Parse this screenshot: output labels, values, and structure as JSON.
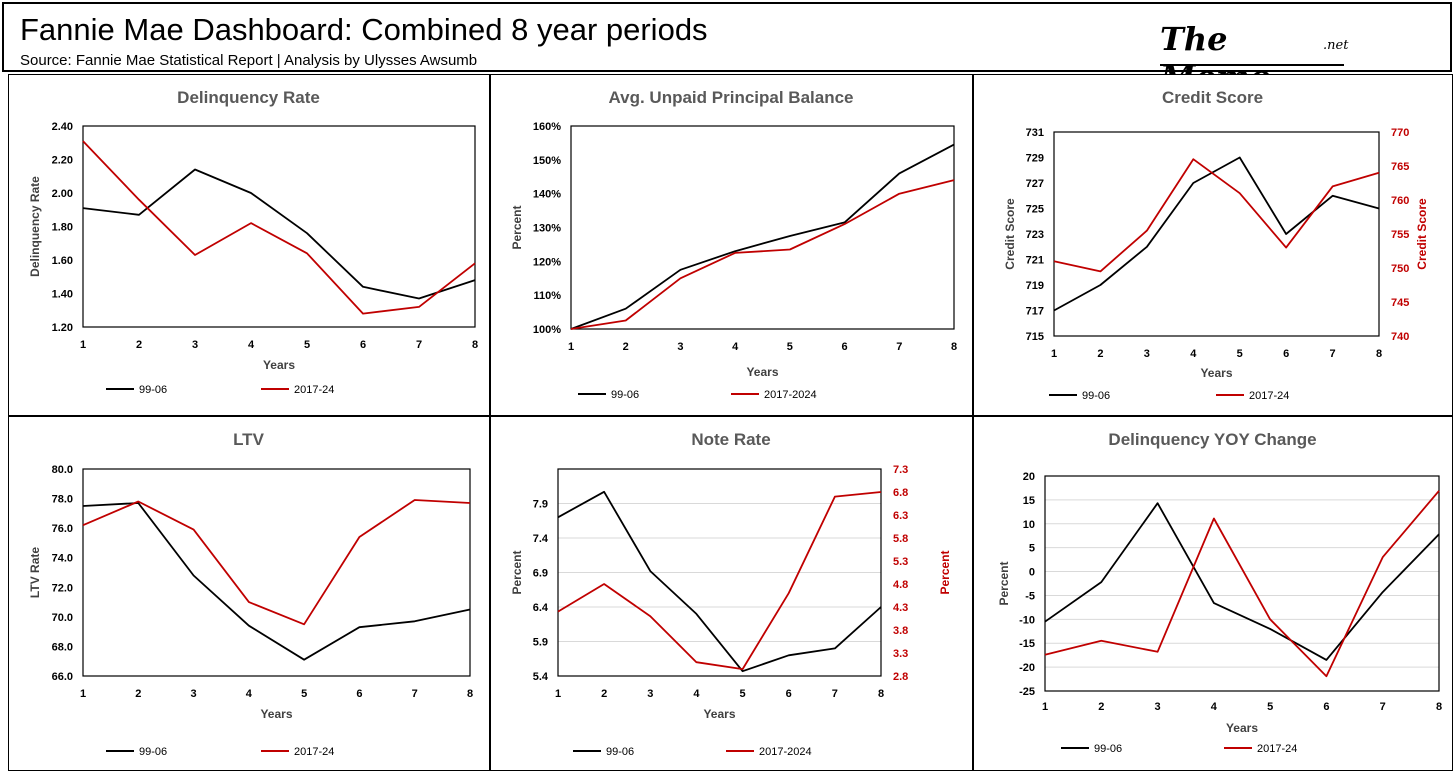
{
  "header": {
    "title": "Fannie Mae Dashboard: Combined 8 year periods",
    "subtitle": "Source: Fannie Mae Statistical Report | Analysis by Ulysses Awsumb",
    "logo_main": "The Memo",
    "logo_tld": ".net"
  },
  "colors": {
    "series1": "#000000",
    "series2": "#c00000",
    "grid": "#d9d9d9"
  },
  "chart_data": [
    {
      "id": "delinquency",
      "type": "line",
      "title": "Delinquency Rate",
      "xlabel": "Years",
      "ylabel": "Delinquency Rate",
      "categories": [
        "1",
        "2",
        "3",
        "4",
        "5",
        "6",
        "7",
        "8"
      ],
      "ylim": [
        1.2,
        2.4
      ],
      "yticks": [
        "1.20",
        "1.40",
        "1.60",
        "1.80",
        "2.00",
        "2.20",
        "2.40"
      ],
      "grid": false,
      "legend": "bottom",
      "series": [
        {
          "name": "99-06",
          "axis": "left",
          "values": [
            1.91,
            1.87,
            2.14,
            2.0,
            1.76,
            1.44,
            1.37,
            1.48
          ]
        },
        {
          "name": "2017-24",
          "axis": "left",
          "values": [
            2.31,
            1.96,
            1.63,
            1.82,
            1.64,
            1.28,
            1.32,
            1.58
          ]
        }
      ]
    },
    {
      "id": "upb",
      "type": "line",
      "title": "Avg. Unpaid Principal Balance",
      "xlabel": "Years",
      "ylabel": "Percent",
      "categories": [
        "1",
        "2",
        "3",
        "4",
        "5",
        "6",
        "7",
        "8"
      ],
      "ylim": [
        100,
        160
      ],
      "yticks": [
        "100%",
        "110%",
        "120%",
        "130%",
        "140%",
        "150%",
        "160%"
      ],
      "grid": false,
      "legend": "bottom",
      "series": [
        {
          "name": "99-06",
          "axis": "left",
          "values": [
            100,
            106,
            117.5,
            123,
            127.5,
            131.5,
            146,
            154.5
          ]
        },
        {
          "name": "2017-2024",
          "axis": "left",
          "values": [
            100,
            102.5,
            115,
            122.5,
            123.5,
            131,
            140,
            144
          ]
        }
      ]
    },
    {
      "id": "credit",
      "type": "line",
      "title": "Credit Score",
      "xlabel": "Years",
      "ylabel": "Credit Score",
      "y2label": "Credit Score",
      "categories": [
        "1",
        "2",
        "3",
        "4",
        "5",
        "6",
        "7",
        "8"
      ],
      "ylim": [
        715,
        731
      ],
      "yticks": [
        "715",
        "717",
        "719",
        "721",
        "723",
        "725",
        "727",
        "729",
        "731"
      ],
      "y2lim": [
        740,
        770
      ],
      "y2ticks": [
        "740",
        "745",
        "750",
        "755",
        "760",
        "765",
        "770"
      ],
      "grid": false,
      "legend": "bottom",
      "series": [
        {
          "name": "99-06",
          "axis": "left",
          "values": [
            717,
            719,
            722,
            727,
            729,
            723,
            726,
            725
          ]
        },
        {
          "name": "2017-24",
          "axis": "right",
          "values": [
            751,
            749.5,
            755.5,
            766,
            761,
            753,
            762,
            764
          ]
        }
      ]
    },
    {
      "id": "ltv",
      "type": "line",
      "title": "LTV",
      "xlabel": "Years",
      "ylabel": "LTV Rate",
      "categories": [
        "1",
        "2",
        "3",
        "4",
        "5",
        "6",
        "7",
        "8"
      ],
      "ylim": [
        66,
        80
      ],
      "yticks": [
        "66.0",
        "68.0",
        "70.0",
        "72.0",
        "74.0",
        "76.0",
        "78.0",
        "80.0"
      ],
      "grid": false,
      "legend": "bottom",
      "series": [
        {
          "name": "99-06",
          "axis": "left",
          "values": [
            77.5,
            77.7,
            72.8,
            69.4,
            67.1,
            69.3,
            69.7,
            70.5
          ]
        },
        {
          "name": "2017-24",
          "axis": "left",
          "values": [
            76.2,
            77.8,
            75.9,
            71.0,
            69.5,
            75.4,
            77.9,
            77.7
          ]
        }
      ]
    },
    {
      "id": "noterate",
      "type": "line",
      "title": "Note Rate",
      "xlabel": "Years",
      "ylabel": "Percent",
      "y2label": "Percent",
      "categories": [
        "1",
        "2",
        "3",
        "4",
        "5",
        "6",
        "7",
        "8"
      ],
      "ylim": [
        5.4,
        8.4
      ],
      "yticks": [
        "5.4",
        "5.9",
        "6.4",
        "6.9",
        "7.4",
        "7.9"
      ],
      "y2lim": [
        2.8,
        7.3
      ],
      "y2ticks": [
        "2.8",
        "3.3",
        "3.8",
        "4.3",
        "4.8",
        "5.3",
        "5.8",
        "6.3",
        "6.8",
        "7.3"
      ],
      "grid": true,
      "legend": "bottom",
      "series": [
        {
          "name": "99-06",
          "axis": "left",
          "values": [
            7.7,
            8.07,
            6.92,
            6.3,
            5.47,
            5.7,
            5.8,
            6.4
          ]
        },
        {
          "name": "2017-2024",
          "axis": "right",
          "values": [
            4.2,
            4.8,
            4.1,
            3.1,
            2.95,
            4.6,
            6.7,
            6.8
          ]
        }
      ]
    },
    {
      "id": "yoy",
      "type": "line",
      "title": "Delinquency YOY Change",
      "xlabel": "Years",
      "ylabel": "Percent",
      "categories": [
        "1",
        "2",
        "3",
        "4",
        "5",
        "6",
        "7",
        "8"
      ],
      "ylim": [
        -25,
        20
      ],
      "yticks": [
        "-25",
        "-20",
        "-15",
        "-10",
        "-5",
        "0",
        "5",
        "10",
        "15",
        "20"
      ],
      "grid": true,
      "legend": "bottom",
      "series": [
        {
          "name": "99-06",
          "axis": "left",
          "values": [
            -10.5,
            -2.2,
            14.3,
            -6.6,
            -12.0,
            -18.5,
            -4.3,
            7.8
          ]
        },
        {
          "name": "2017-24",
          "axis": "left",
          "values": [
            -17.4,
            -14.5,
            -16.8,
            11.1,
            -10.0,
            -21.9,
            3.0,
            16.9
          ]
        }
      ]
    }
  ]
}
